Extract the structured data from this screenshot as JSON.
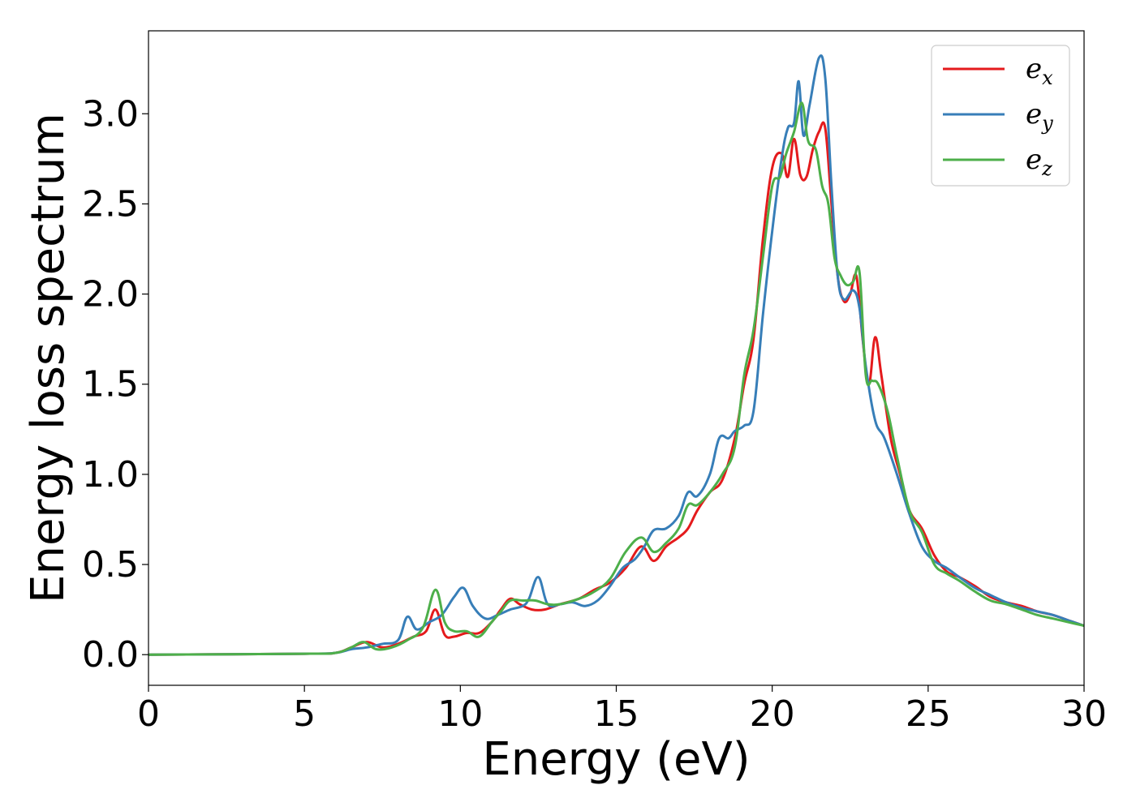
{
  "chart_data": {
    "type": "line",
    "title": "",
    "xlabel": "Energy (eV)",
    "ylabel": "Energy loss spectrum",
    "xlim": [
      0,
      30
    ],
    "ylim": [
      -0.17,
      3.46
    ],
    "xticks": [
      0,
      5,
      10,
      15,
      20,
      25,
      30
    ],
    "xtick_labels": [
      "0",
      "5",
      "10",
      "15",
      "20",
      "25",
      "30"
    ],
    "yticks": [
      0.0,
      0.5,
      1.0,
      1.5,
      2.0,
      2.5,
      3.0
    ],
    "ytick_labels": [
      "0.0",
      "0.5",
      "1.0",
      "1.5",
      "2.0",
      "2.5",
      "3.0"
    ],
    "grid": false,
    "legend_position": "top-right",
    "series": [
      {
        "name": "e",
        "subscript": "x",
        "color": "#e41a1c",
        "x": [
          0,
          5,
          6,
          6.5,
          7,
          7.5,
          8,
          8.5,
          8.9,
          9.2,
          9.5,
          9.8,
          10.2,
          10.6,
          11,
          11.3,
          11.6,
          11.9,
          12.3,
          12.7,
          13.2,
          13.8,
          14.3,
          14.8,
          15.3,
          15.8,
          16.2,
          16.6,
          17,
          17.3,
          17.6,
          18,
          18.4,
          18.8,
          19.1,
          19.4,
          19.7,
          20,
          20.3,
          20.5,
          20.7,
          20.9,
          21.1,
          21.3,
          21.5,
          21.7,
          21.9,
          22.1,
          22.3,
          22.5,
          22.7,
          22.9,
          23.1,
          23.3,
          23.5,
          23.8,
          24.1,
          24.4,
          24.8,
          25.2,
          25.6,
          26,
          26.5,
          27,
          27.5,
          28,
          28.5,
          29,
          29.5,
          30
        ],
        "values": [
          0.0,
          0.005,
          0.01,
          0.04,
          0.07,
          0.04,
          0.06,
          0.1,
          0.13,
          0.25,
          0.11,
          0.1,
          0.12,
          0.12,
          0.18,
          0.25,
          0.31,
          0.28,
          0.25,
          0.25,
          0.28,
          0.31,
          0.36,
          0.4,
          0.48,
          0.6,
          0.52,
          0.6,
          0.65,
          0.7,
          0.8,
          0.9,
          0.97,
          1.2,
          1.5,
          1.75,
          2.3,
          2.7,
          2.78,
          2.65,
          2.86,
          2.66,
          2.65,
          2.8,
          2.9,
          2.92,
          2.5,
          2.1,
          1.96,
          2.0,
          2.1,
          1.75,
          1.5,
          1.76,
          1.55,
          1.2,
          1.0,
          0.8,
          0.7,
          0.55,
          0.46,
          0.43,
          0.38,
          0.32,
          0.29,
          0.27,
          0.24,
          0.22,
          0.19,
          0.16
        ]
      },
      {
        "name": "e",
        "subscript": "y",
        "color": "#377eb8",
        "x": [
          0,
          5,
          6,
          6.5,
          7,
          7.5,
          8,
          8.3,
          8.6,
          9,
          9.4,
          9.8,
          10.1,
          10.4,
          10.8,
          11.2,
          11.6,
          12,
          12.2,
          12.5,
          12.8,
          13.2,
          13.6,
          14,
          14.4,
          14.8,
          15.2,
          15.6,
          15.9,
          16.2,
          16.6,
          17,
          17.3,
          17.6,
          18,
          18.3,
          18.6,
          18.8,
          19.1,
          19.4,
          19.7,
          20,
          20.3,
          20.5,
          20.7,
          20.85,
          21,
          21.2,
          21.5,
          21.7,
          21.9,
          22.1,
          22.3,
          22.6,
          22.8,
          23,
          23.3,
          23.6,
          24,
          24.4,
          24.8,
          25.2,
          25.6,
          26,
          26.5,
          27,
          27.5,
          28,
          28.5,
          29,
          29.5,
          30
        ],
        "values": [
          0.0,
          0.005,
          0.01,
          0.03,
          0.04,
          0.06,
          0.08,
          0.21,
          0.14,
          0.18,
          0.22,
          0.32,
          0.37,
          0.27,
          0.2,
          0.22,
          0.25,
          0.27,
          0.31,
          0.43,
          0.28,
          0.28,
          0.29,
          0.27,
          0.3,
          0.38,
          0.48,
          0.53,
          0.6,
          0.69,
          0.7,
          0.77,
          0.9,
          0.88,
          1.0,
          1.2,
          1.2,
          1.24,
          1.27,
          1.35,
          1.88,
          2.35,
          2.75,
          2.92,
          2.95,
          3.18,
          2.88,
          3.05,
          3.31,
          3.2,
          2.6,
          2.1,
          1.97,
          2.02,
          1.92,
          1.6,
          1.3,
          1.2,
          1.0,
          0.78,
          0.6,
          0.52,
          0.48,
          0.43,
          0.37,
          0.33,
          0.29,
          0.26,
          0.24,
          0.22,
          0.19,
          0.16
        ]
      },
      {
        "name": "e",
        "subscript": "z",
        "color": "#4daf4a",
        "x": [
          0,
          5,
          6,
          6.5,
          6.9,
          7.3,
          7.8,
          8.3,
          8.8,
          9.2,
          9.5,
          9.8,
          10.2,
          10.6,
          11,
          11.3,
          11.6,
          12,
          12.4,
          12.8,
          13.2,
          13.8,
          14.3,
          14.8,
          15.3,
          15.8,
          16.2,
          16.6,
          17,
          17.3,
          17.6,
          18,
          18.4,
          18.8,
          19.1,
          19.4,
          19.7,
          20,
          20.25,
          20.45,
          20.7,
          20.95,
          21.15,
          21.4,
          21.6,
          21.8,
          22,
          22.2,
          22.4,
          22.6,
          22.8,
          23,
          23.2,
          23.4,
          23.7,
          24,
          24.4,
          24.8,
          25.2,
          25.6,
          26,
          26.5,
          27,
          27.5,
          28,
          28.5,
          29,
          29.5,
          30
        ],
        "values": [
          0.0,
          0.005,
          0.01,
          0.04,
          0.07,
          0.03,
          0.04,
          0.08,
          0.15,
          0.36,
          0.18,
          0.13,
          0.13,
          0.1,
          0.18,
          0.24,
          0.3,
          0.3,
          0.3,
          0.28,
          0.28,
          0.31,
          0.35,
          0.42,
          0.57,
          0.65,
          0.57,
          0.62,
          0.7,
          0.83,
          0.83,
          0.9,
          1.0,
          1.15,
          1.55,
          1.8,
          2.2,
          2.6,
          2.65,
          2.78,
          2.9,
          3.06,
          2.85,
          2.8,
          2.6,
          2.5,
          2.2,
          2.1,
          2.05,
          2.07,
          2.12,
          1.55,
          1.52,
          1.5,
          1.35,
          1.1,
          0.8,
          0.68,
          0.5,
          0.45,
          0.41,
          0.35,
          0.3,
          0.28,
          0.25,
          0.22,
          0.2,
          0.18,
          0.16
        ]
      }
    ]
  }
}
